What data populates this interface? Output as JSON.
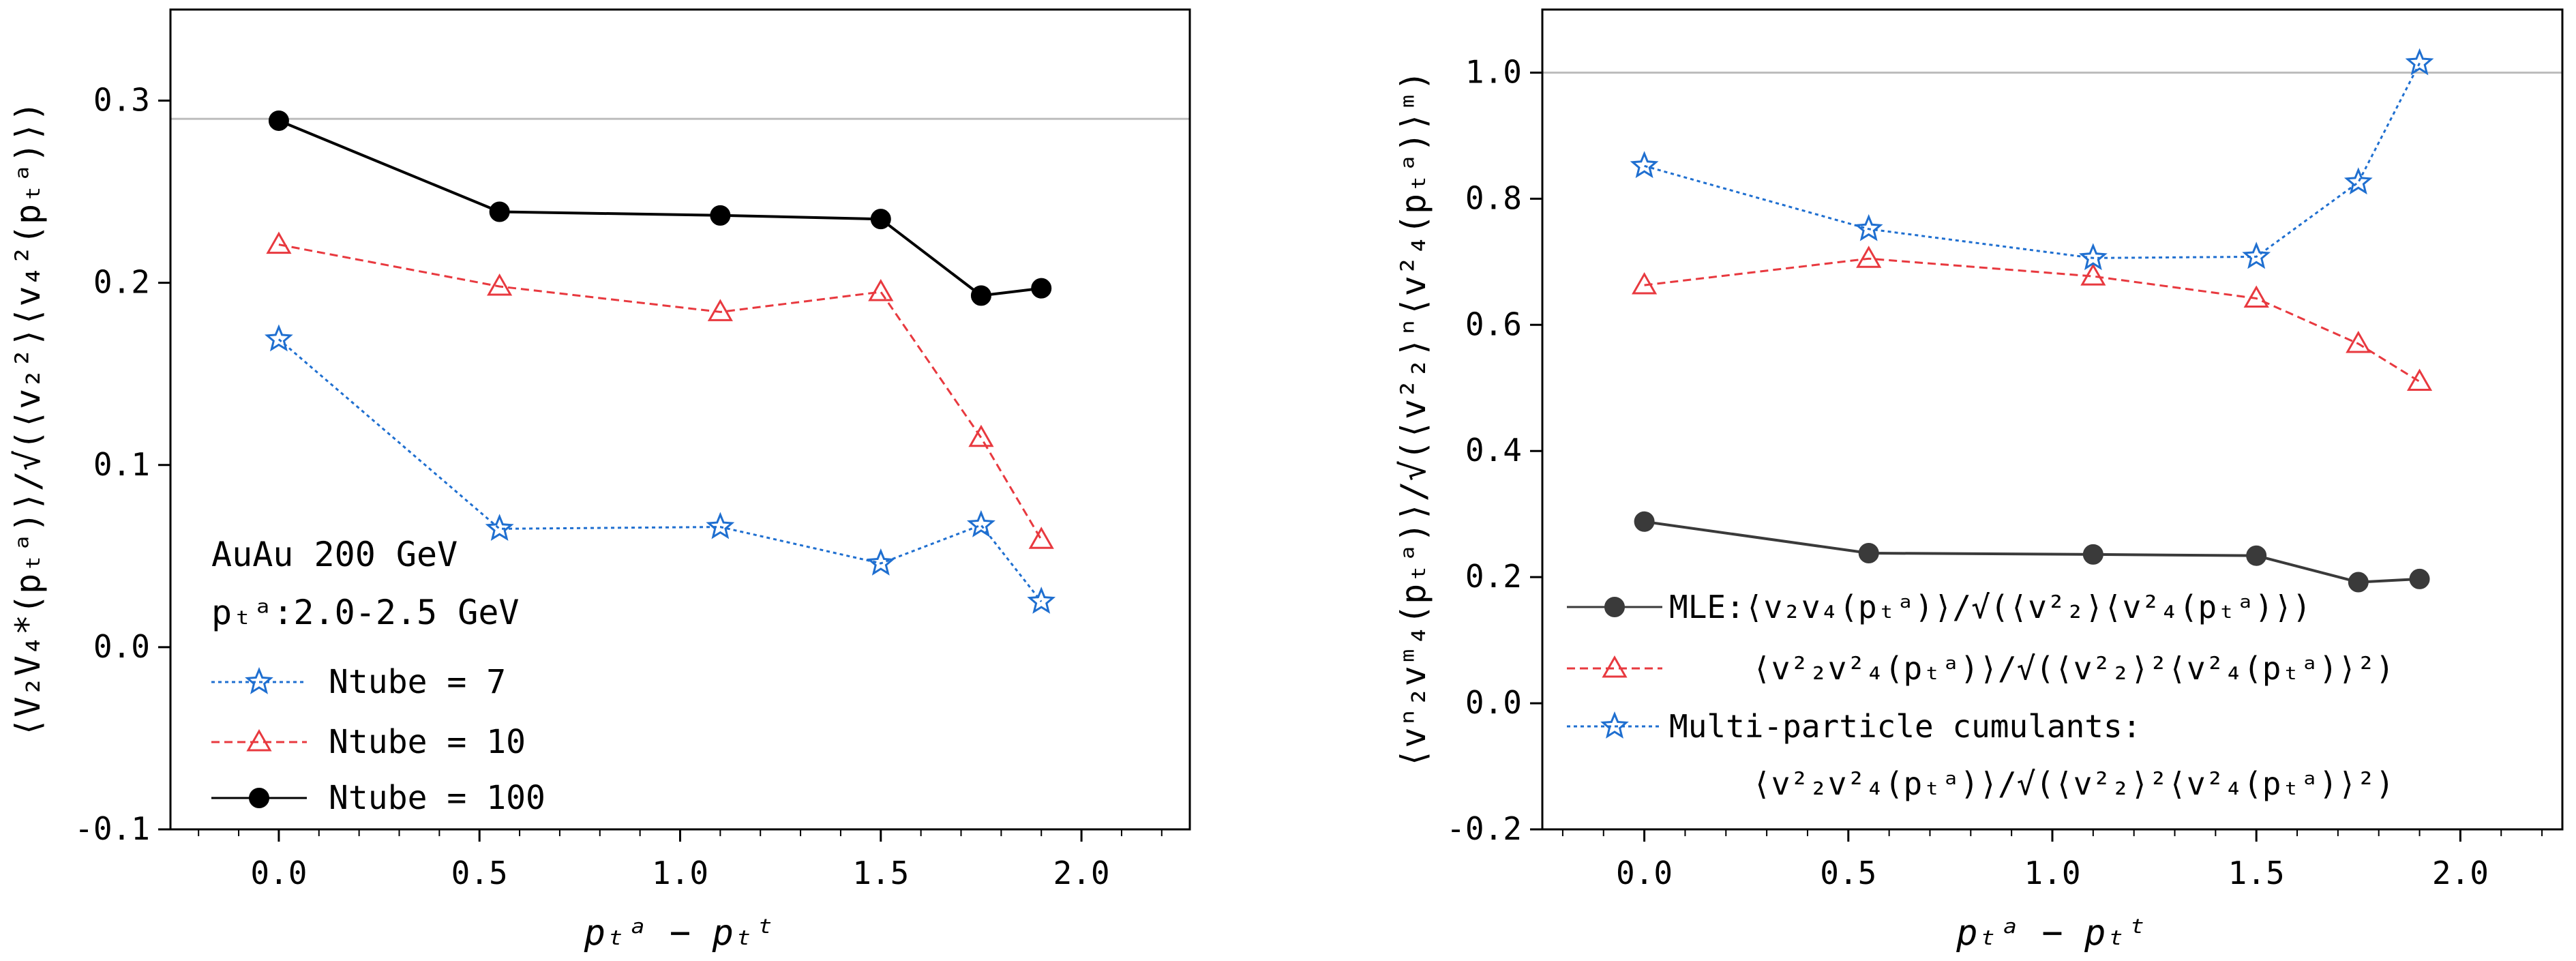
{
  "chart_data": [
    {
      "type": "line",
      "ylabel": "⟨V₂V₄*(pₜᵃ)⟩/√(⟨v₂²⟩⟨v₄²(pₜᵃ)⟩)",
      "xlabel": "pₜᵃ − pₜᵗ",
      "xlim": [
        -0.27,
        2.27
      ],
      "ylim": [
        -0.1,
        0.35
      ],
      "xticks": [
        "0.0",
        "0.5",
        "1.0",
        "1.5",
        "2.0"
      ],
      "yticks": [
        "-0.1",
        "0.0",
        "0.1",
        "0.2",
        "0.3"
      ],
      "reference_line": 0.29,
      "annotation": [
        "AuAu 200 GeV",
        "pₜᵃ:2.0-2.5 GeV"
      ],
      "legend_position": "lower-left",
      "x": [
        0.0,
        0.55,
        1.1,
        1.5,
        1.75,
        1.9
      ],
      "series": [
        {
          "name": "Ntube = 7",
          "color": "#1f6fd0",
          "marker": "star",
          "dash": "dotted",
          "values": [
            0.169,
            0.065,
            0.066,
            0.046,
            0.067,
            0.025
          ]
        },
        {
          "name": "Ntube = 10",
          "color": "#e8393f",
          "marker": "triangle",
          "dash": "dashed",
          "values": [
            0.221,
            0.198,
            0.184,
            0.195,
            0.115,
            0.059
          ]
        },
        {
          "name": "Ntube = 100",
          "color": "#000000",
          "marker": "circle",
          "dash": "solid",
          "values": [
            0.289,
            0.239,
            0.237,
            0.235,
            0.193,
            0.197
          ]
        }
      ]
    },
    {
      "type": "line",
      "ylabel": "⟨vⁿ₂vᵐ₄(pₜᵃ)⟩/√(⟨v²₂⟩ⁿ⟨v²₄(pₜᵃ)⟩ᵐ)",
      "xlabel": "pₜᵃ − pₜᵗ",
      "xlim": [
        -0.25,
        2.25
      ],
      "ylim": [
        -0.2,
        1.1
      ],
      "xticks": [
        "0.0",
        "0.5",
        "1.0",
        "1.5",
        "2.0"
      ],
      "yticks": [
        "-0.2",
        "0.0",
        "0.2",
        "0.4",
        "0.6",
        "0.8",
        "1.0"
      ],
      "reference_line": 1.0,
      "legend_position": "lower-left",
      "x": [
        0.0,
        0.55,
        1.1,
        1.5,
        1.75,
        1.9
      ],
      "series": [
        {
          "name": "MLE:⟨v₂v₄(pₜᵃ)⟩/√(⟨v²₂⟩⟨v²₄(pₜᵃ)⟩)",
          "color": "#3a3a3a",
          "marker": "circle",
          "dash": "solid",
          "values": [
            0.288,
            0.238,
            0.236,
            0.234,
            0.192,
            0.197
          ]
        },
        {
          "name": "⟨v²₂v²₄(pₜᵃ)⟩/√(⟨v²₂⟩²⟨v²₄(pₜᵃ)⟩²)",
          "color": "#e8393f",
          "marker": "triangle",
          "dash": "dashed",
          "values": [
            0.663,
            0.705,
            0.677,
            0.642,
            0.57,
            0.51
          ]
        },
        {
          "name": "Multi-particle cumulants: ⟨v²₂v²₄(pₜᵃ)⟩/√(⟨v²₂⟩²⟨v²₄(pₜᵃ)⟩²)",
          "color": "#1f6fd0",
          "marker": "star",
          "dash": "dotted",
          "values": [
            0.852,
            0.752,
            0.706,
            0.708,
            0.826,
            1.015
          ]
        }
      ]
    }
  ]
}
